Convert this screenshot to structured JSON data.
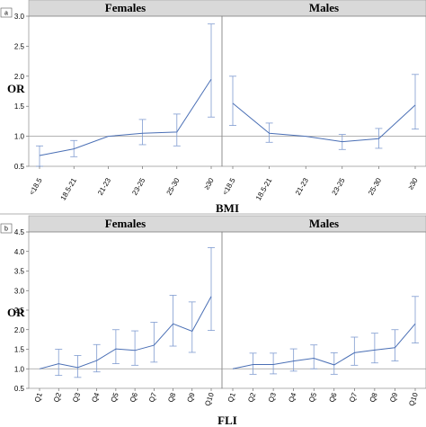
{
  "chart_data": [
    {
      "type": "line",
      "panel_label": "a",
      "ylabel": "OR",
      "xlabel": "BMI",
      "ylim": [
        0.5,
        3.0
      ],
      "yticks": [
        "0.5",
        "1.0",
        "1.5",
        "2.0",
        "2.5",
        "3.0"
      ],
      "reference_line": 1.0,
      "categories": [
        "<18.5",
        "18.5-21",
        "21-23",
        "23-25",
        "25-30",
        "≥30"
      ],
      "facets": [
        {
          "name": "Females",
          "values": [
            0.68,
            0.79,
            1.0,
            1.05,
            1.07,
            1.95
          ],
          "lower": [
            0.5,
            0.66,
            1.0,
            0.86,
            0.84,
            1.32
          ],
          "upper": [
            0.84,
            0.93,
            1.0,
            1.28,
            1.37,
            2.87
          ]
        },
        {
          "name": "Males",
          "values": [
            1.55,
            1.05,
            1.0,
            0.91,
            0.96,
            1.52
          ],
          "lower": [
            1.18,
            0.9,
            1.0,
            0.78,
            0.8,
            1.12
          ],
          "upper": [
            2.0,
            1.22,
            1.0,
            1.03,
            1.13,
            2.03
          ]
        }
      ]
    },
    {
      "type": "line",
      "panel_label": "b",
      "ylabel": "OR",
      "xlabel": "FLI",
      "ylim": [
        0.5,
        4.5
      ],
      "yticks": [
        "0.5",
        "1.0",
        "1.5",
        "2.0",
        "2.5",
        "3.0",
        "3.5",
        "4.0",
        "4.5"
      ],
      "reference_line": 1.0,
      "categories": [
        "Q1",
        "Q2",
        "Q3",
        "Q4",
        "Q5",
        "Q6",
        "Q7",
        "Q8",
        "Q9",
        "Q10"
      ],
      "facets": [
        {
          "name": "Females",
          "values": [
            1.0,
            1.13,
            1.03,
            1.21,
            1.51,
            1.47,
            1.6,
            2.15,
            1.96,
            2.85
          ],
          "lower": [
            1.0,
            0.83,
            0.78,
            0.92,
            1.13,
            1.09,
            1.17,
            1.58,
            1.42,
            1.98
          ],
          "upper": [
            1.0,
            1.5,
            1.34,
            1.62,
            2.0,
            1.97,
            2.19,
            2.88,
            2.71,
            4.1
          ]
        },
        {
          "name": "Males",
          "values": [
            1.0,
            1.11,
            1.11,
            1.2,
            1.27,
            1.1,
            1.41,
            1.48,
            1.54,
            2.15
          ],
          "lower": [
            1.0,
            0.86,
            0.87,
            0.94,
            1.0,
            0.86,
            1.09,
            1.15,
            1.2,
            1.66
          ],
          "upper": [
            1.0,
            1.4,
            1.4,
            1.51,
            1.61,
            1.41,
            1.81,
            1.91,
            2.0,
            2.85
          ]
        }
      ]
    }
  ]
}
